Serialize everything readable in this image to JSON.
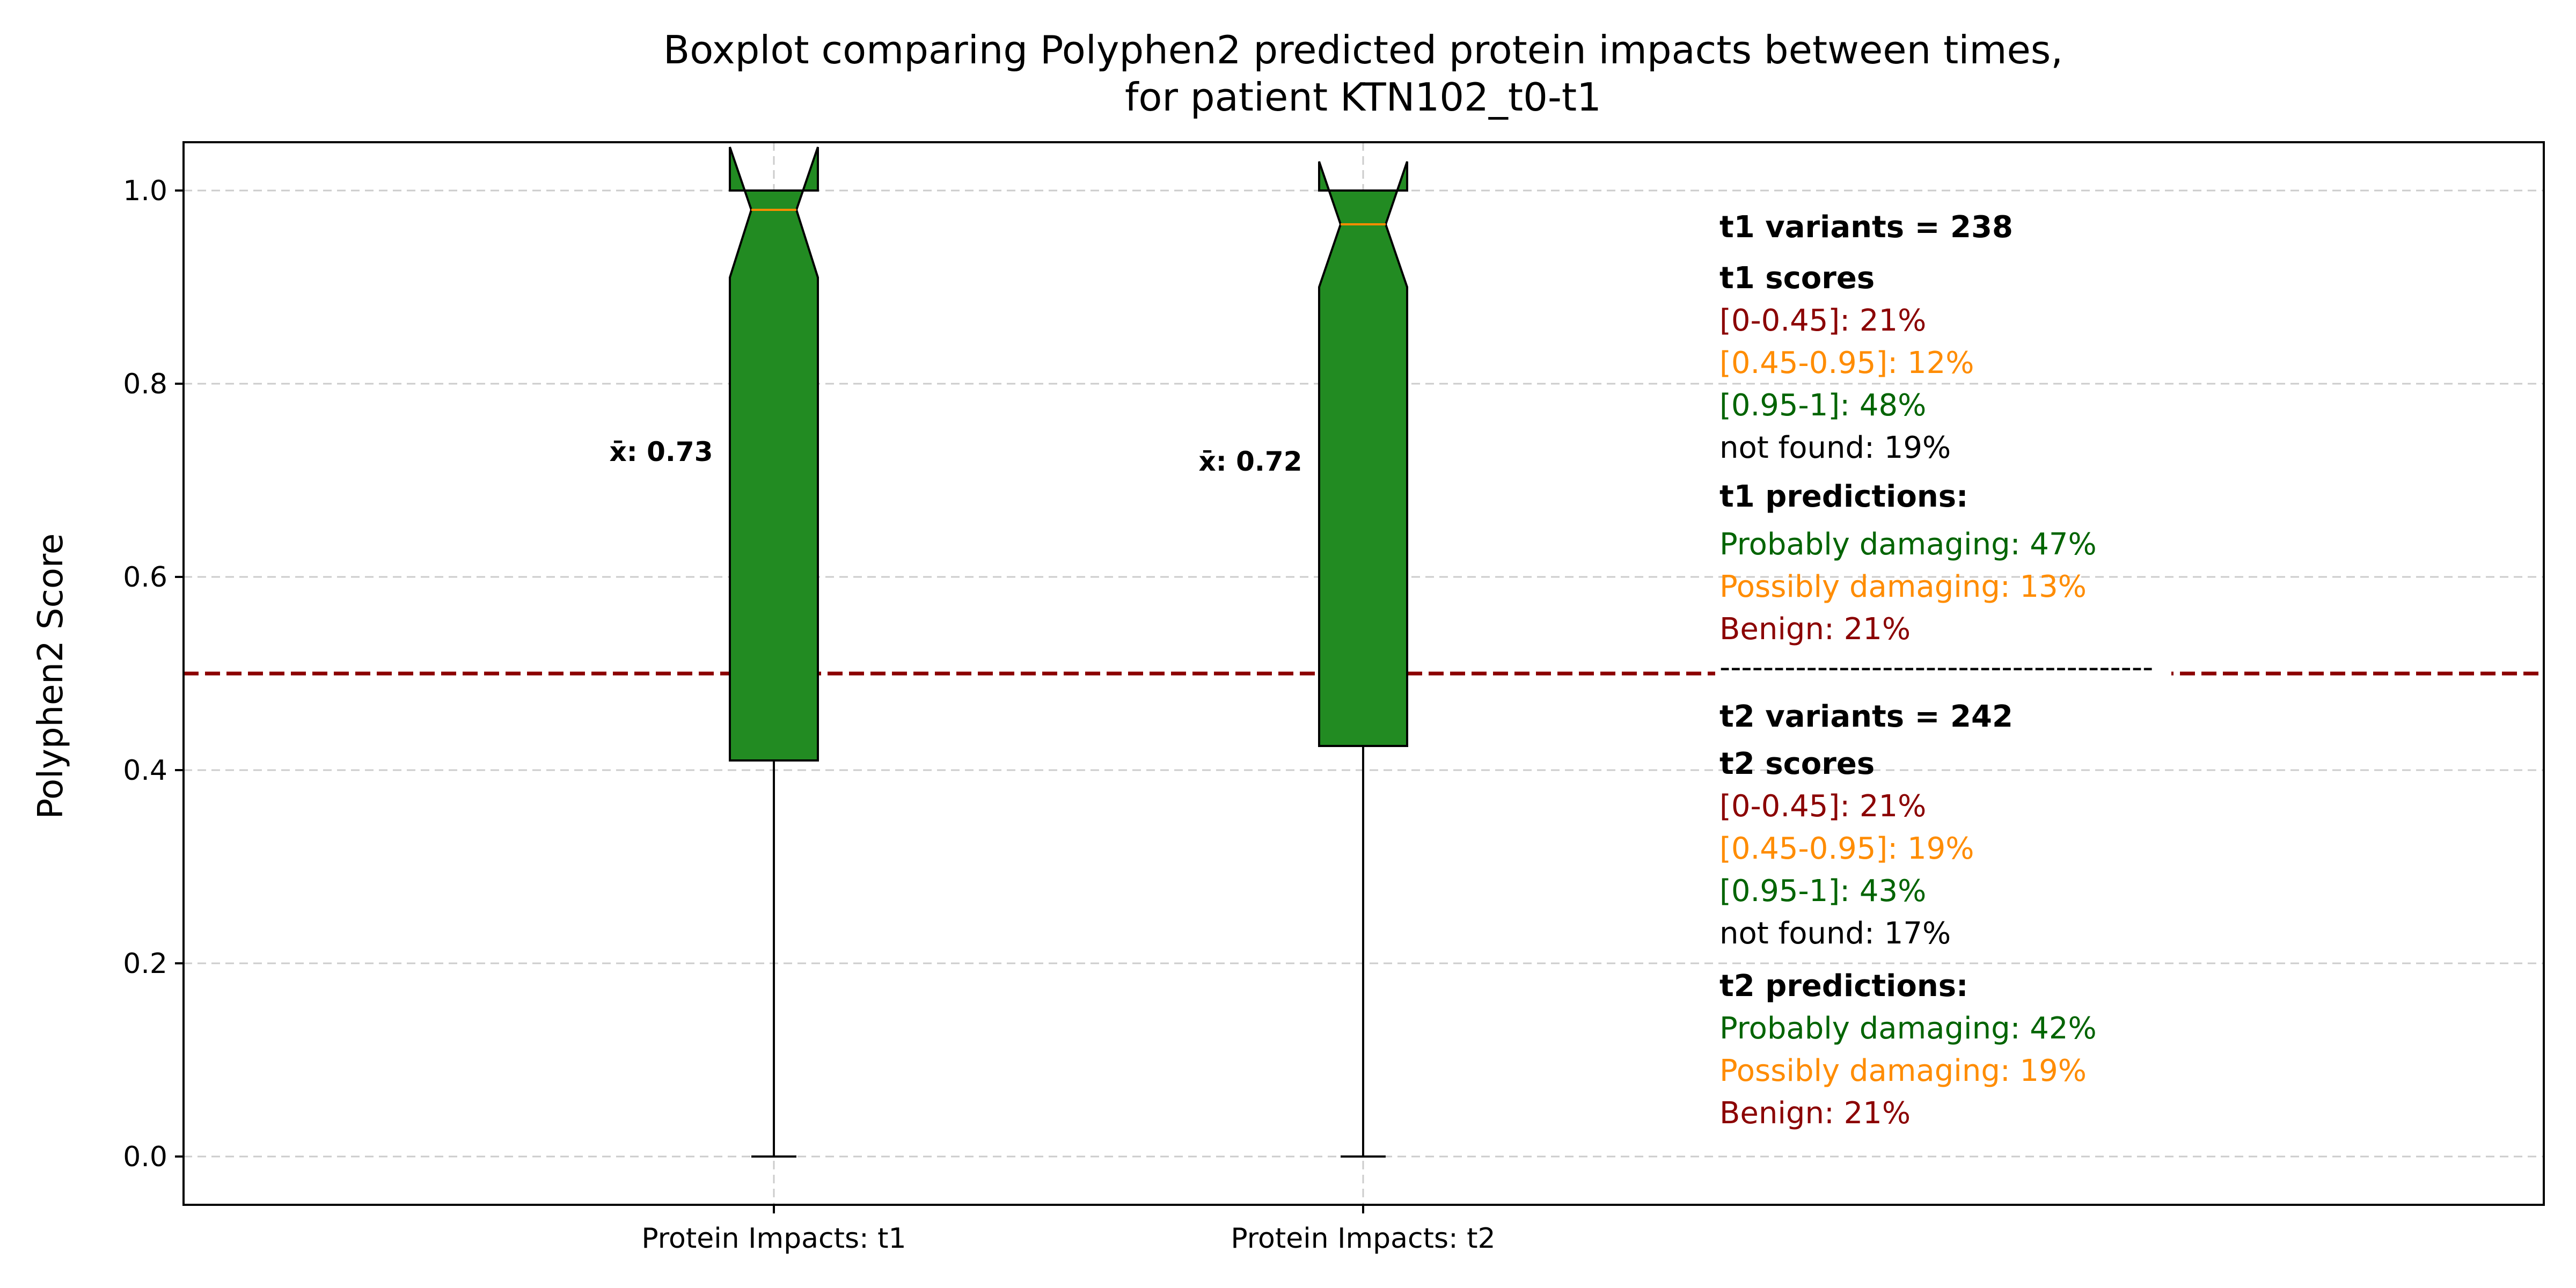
{
  "chart_data": {
    "type": "box",
    "title_line1": "Boxplot comparing Polyphen2 predicted protein impacts between times,",
    "title_line2": "for patient KTN102_t0-t1",
    "ylabel": "Polyphen2 Score",
    "ylim": [
      -0.05,
      1.05
    ],
    "yticks": [
      "0.0",
      "0.2",
      "0.4",
      "0.6",
      "0.8",
      "1.0"
    ],
    "ytick_values": [
      0.0,
      0.2,
      0.4,
      0.6,
      0.8,
      1.0
    ],
    "grid": true,
    "threshold": 0.5,
    "colors": {
      "box": "#228B22",
      "median": "#ff8c00",
      "threshold": "#8b0000",
      "grid": "#cccccc",
      "red": "#8b0000",
      "orange": "#ff8c00",
      "green": "#006400"
    },
    "categories": [
      "Protein Impacts: t1",
      "Protein Impacts: t2"
    ],
    "boxes": [
      {
        "label": "Protein Impacts: t1",
        "whislo": 0.0,
        "q1": 0.41,
        "med": 0.98,
        "q3": 1.0,
        "whishi": 1.0,
        "notch_lo": 0.91,
        "notch_hi": 1.045,
        "mean_label": "x̄: 0.73",
        "mean_label_y": 0.72
      },
      {
        "label": "Protein Impacts: t2",
        "whislo": 0.0,
        "q1": 0.425,
        "med": 0.965,
        "q3": 1.0,
        "whishi": 1.0,
        "notch_lo": 0.9,
        "notch_hi": 1.03,
        "mean_label": "x̄: 0.72",
        "mean_label_y": 0.71
      }
    ]
  },
  "annotations": {
    "t1": {
      "variants": "t1 variants = 238",
      "scores_header": "t1 scores",
      "score_low": "[0-0.45]: 21%",
      "score_mid": "[0.45-0.95]: 12%",
      "score_high": "[0.95-1]: 48%",
      "not_found": "not found: 19%",
      "pred_header": "t1 predictions:",
      "prob": "Probably damaging: 47%",
      "poss": "Possibly damaging: 13%",
      "benign": "Benign: 21%"
    },
    "separator": "----------------------------------------",
    "t2": {
      "variants": "t2 variants = 242",
      "scores_header": "t2 scores",
      "score_low": "[0-0.45]: 21%",
      "score_mid": "[0.45-0.95]: 19%",
      "score_high": "[0.95-1]: 43%",
      "not_found": "not found: 17%",
      "pred_header": "t2 predictions:",
      "prob": "Probably damaging: 42%",
      "poss": "Possibly damaging: 19%",
      "benign": "Benign: 21%"
    }
  }
}
